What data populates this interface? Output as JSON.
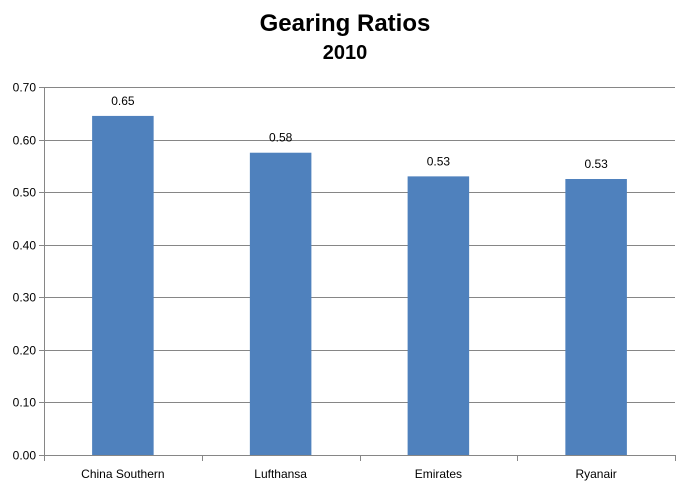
{
  "chart_data": {
    "type": "bar",
    "title": "Gearing Ratios",
    "subtitle": "2010",
    "xlabel": "",
    "ylabel": "",
    "categories": [
      "China Southern",
      "Lufthansa",
      "Emirates",
      "Ryanair"
    ],
    "values": [
      0.645,
      0.575,
      0.53,
      0.525
    ],
    "data_labels": [
      "0.65",
      "0.58",
      "0.53",
      "0.53"
    ],
    "y_ticks": [
      "0.00",
      "0.10",
      "0.20",
      "0.30",
      "0.40",
      "0.50",
      "0.60",
      "0.70"
    ],
    "ylim": [
      0,
      0.7
    ],
    "grid": true,
    "legend": "none",
    "colors": {
      "bar": "#4F81BD",
      "grid": "#868686",
      "axis": "#868686"
    }
  }
}
